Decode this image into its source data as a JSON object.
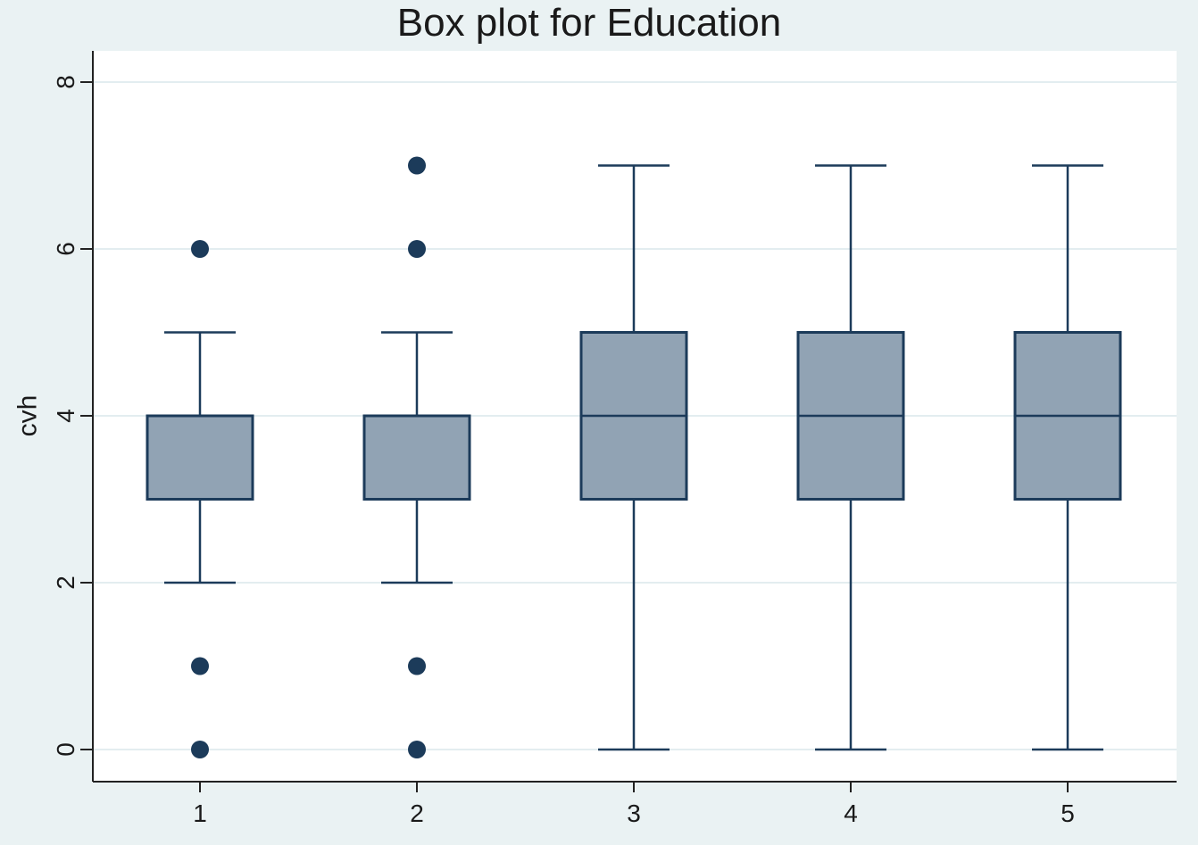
{
  "chart_data": {
    "type": "box",
    "title": "Box plot for Education",
    "xlabel": "",
    "ylabel": "cvh",
    "ylim": [
      0,
      8
    ],
    "yticks": [
      0,
      2,
      4,
      6,
      8
    ],
    "grid": true,
    "categories": [
      "1",
      "2",
      "3",
      "4",
      "5"
    ],
    "boxes": [
      {
        "category": "1",
        "whisker_low": 2,
        "q1": 3,
        "median": 4,
        "q3": 4,
        "whisker_high": 5,
        "outliers": [
          0,
          1,
          6
        ]
      },
      {
        "category": "2",
        "whisker_low": 2,
        "q1": 3,
        "median": 3,
        "q3": 4,
        "whisker_high": 5,
        "outliers": [
          0,
          1,
          6,
          7
        ]
      },
      {
        "category": "3",
        "whisker_low": 0,
        "q1": 3,
        "median": 4,
        "q3": 5,
        "whisker_high": 7,
        "outliers": []
      },
      {
        "category": "4",
        "whisker_low": 0,
        "q1": 3,
        "median": 4,
        "q3": 5,
        "whisker_high": 7,
        "outliers": []
      },
      {
        "category": "5",
        "whisker_low": 0,
        "q1": 3,
        "median": 4,
        "q3": 5,
        "whisker_high": 7,
        "outliers": []
      }
    ],
    "colors": {
      "background": "#eaf2f3",
      "plot_background": "#ffffff",
      "box_fill": "#91a3b4",
      "line": "#1c3b5a",
      "grid": "#e3edf0"
    }
  }
}
